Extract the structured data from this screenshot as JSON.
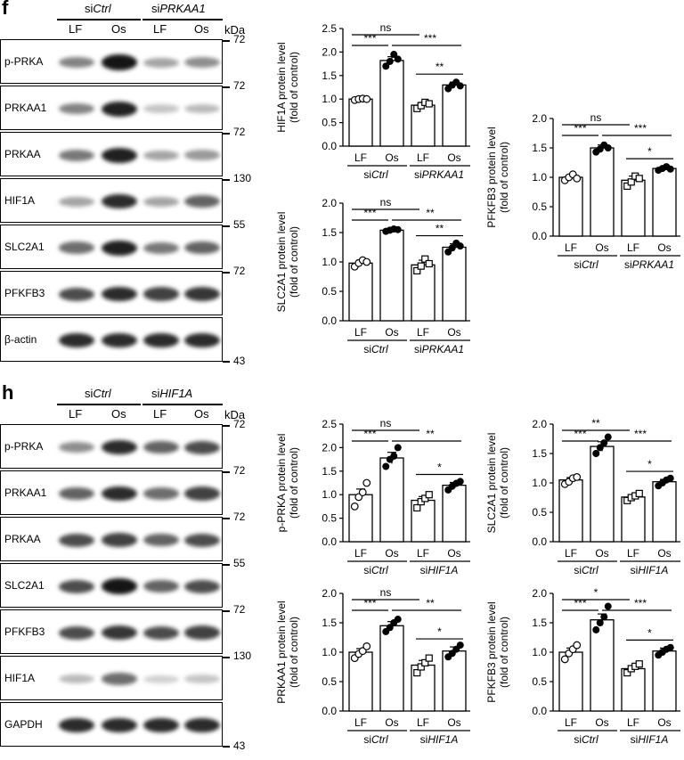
{
  "panels": {
    "f": {
      "letter": "f",
      "header": {
        "group1": "siCtrl",
        "group2": "siPRKAA1",
        "lanes": [
          "LF",
          "Os",
          "LF",
          "Os"
        ],
        "kda": "kDa"
      },
      "blots": [
        {
          "label": "p-PRKA",
          "marker": "72",
          "intensity": [
            0.45,
            0.95,
            0.3,
            0.4
          ]
        },
        {
          "label": "PRKAA1",
          "marker": "72",
          "intensity": [
            0.45,
            0.9,
            0.15,
            0.2
          ]
        },
        {
          "label": "PRKAA",
          "marker": "72",
          "intensity": [
            0.5,
            0.9,
            0.3,
            0.35
          ]
        },
        {
          "label": "HIF1A",
          "marker": "130",
          "intensity": [
            0.3,
            0.85,
            0.3,
            0.6
          ]
        },
        {
          "label": "SLC2A1",
          "marker": "55",
          "intensity": [
            0.55,
            0.9,
            0.5,
            0.6
          ]
        },
        {
          "label": "PFKFB3",
          "marker": "72",
          "intensity": [
            0.7,
            0.85,
            0.75,
            0.8
          ]
        },
        {
          "label": "β-actin",
          "marker": "",
          "intensity": [
            0.85,
            0.85,
            0.85,
            0.85
          ]
        }
      ],
      "bottom_marker": "43"
    },
    "h": {
      "letter": "h",
      "header": {
        "group1": "siCtrl",
        "group2": "siHIF1A",
        "lanes": [
          "LF",
          "Os",
          "LF",
          "Os"
        ],
        "kda": "kDa"
      },
      "blots": [
        {
          "label": "p-PRKA",
          "marker": "72",
          "intensity": [
            0.4,
            0.85,
            0.6,
            0.7
          ]
        },
        {
          "label": "PRKAA1",
          "marker": "72",
          "intensity": [
            0.6,
            0.85,
            0.55,
            0.75
          ]
        },
        {
          "label": "PRKAA",
          "marker": "72",
          "intensity": [
            0.7,
            0.75,
            0.6,
            0.7
          ]
        },
        {
          "label": "SLC2A1",
          "marker": "55",
          "intensity": [
            0.7,
            0.95,
            0.6,
            0.7
          ]
        },
        {
          "label": "PFKFB3",
          "marker": "72",
          "intensity": [
            0.7,
            0.8,
            0.7,
            0.75
          ]
        },
        {
          "label": "HIF1A",
          "marker": "130",
          "intensity": [
            0.2,
            0.55,
            0.1,
            0.15
          ]
        },
        {
          "label": "GAPDH",
          "marker": "",
          "intensity": [
            0.85,
            0.85,
            0.85,
            0.85
          ]
        }
      ],
      "bottom_marker": "43"
    }
  },
  "chart_data": [
    {
      "id": "f-hif1a",
      "type": "bar",
      "categories": [
        "LF",
        "Os",
        "LF",
        "Os"
      ],
      "groups": [
        "siCtrl",
        "siPRKAA1"
      ],
      "values": [
        1.0,
        1.82,
        0.87,
        1.3
      ],
      "errors": [
        0.02,
        0.08,
        0.06,
        0.06
      ],
      "points": [
        [
          0.98,
          1.0,
          1.01,
          1.0
        ],
        [
          1.7,
          1.8,
          1.95,
          1.85
        ],
        [
          0.8,
          0.86,
          0.93,
          0.9
        ],
        [
          1.22,
          1.3,
          1.36,
          1.28
        ]
      ],
      "ylabel": "HIF1A protein level\n(fold of control)",
      "ylim": [
        0,
        2.5
      ],
      "ticks": [
        "0.0",
        "0.5",
        "1.0",
        "1.5",
        "2.0",
        "2.5"
      ],
      "sig": [
        {
          "label": "ns",
          "from": 0,
          "to": 2
        },
        {
          "label": "***",
          "from": 0,
          "to": 1
        },
        {
          "label": "***",
          "from": 1,
          "to": 3
        },
        {
          "label": "**",
          "from": 2,
          "to": 3
        }
      ]
    },
    {
      "id": "f-slc2a1",
      "type": "bar",
      "categories": [
        "LF",
        "Os",
        "LF",
        "Os"
      ],
      "groups": [
        "siCtrl",
        "siPRKAA1"
      ],
      "values": [
        0.98,
        1.54,
        0.95,
        1.25
      ],
      "errors": [
        0.05,
        0.02,
        0.08,
        0.06
      ],
      "points": [
        [
          0.92,
          0.98,
          1.03,
          1.0
        ],
        [
          1.52,
          1.54,
          1.56,
          1.55
        ],
        [
          0.85,
          0.93,
          1.05,
          0.97
        ],
        [
          1.17,
          1.24,
          1.32,
          1.27
        ]
      ],
      "ylabel": "SLC2A1 protein level\n(fold of control)",
      "ylim": [
        0,
        2.0
      ],
      "ticks": [
        "0.0",
        "0.5",
        "1.0",
        "1.5",
        "2.0"
      ],
      "sig": [
        {
          "label": "ns",
          "from": 0,
          "to": 2
        },
        {
          "label": "***",
          "from": 0,
          "to": 1
        },
        {
          "label": "**",
          "from": 1,
          "to": 3
        },
        {
          "label": "**",
          "from": 2,
          "to": 3
        }
      ]
    },
    {
      "id": "f-pfkfb3",
      "type": "bar",
      "categories": [
        "LF",
        "Os",
        "LF",
        "Os"
      ],
      "groups": [
        "siCtrl",
        "siPRKAA1"
      ],
      "values": [
        1.0,
        1.5,
        0.95,
        1.15
      ],
      "errors": [
        0.04,
        0.05,
        0.07,
        0.03
      ],
      "points": [
        [
          0.95,
          1.0,
          1.05,
          0.98
        ],
        [
          1.43,
          1.48,
          1.55,
          1.5
        ],
        [
          0.85,
          0.92,
          1.02,
          0.98
        ],
        [
          1.12,
          1.15,
          1.18,
          1.14
        ]
      ],
      "ylabel": "PFKFB3 protein level\n(fold of control)",
      "ylim": [
        0,
        2.0
      ],
      "ticks": [
        "0.0",
        "0.5",
        "1.0",
        "1.5",
        "2.0"
      ],
      "sig": [
        {
          "label": "ns",
          "from": 0,
          "to": 2
        },
        {
          "label": "***",
          "from": 0,
          "to": 1
        },
        {
          "label": "***",
          "from": 1,
          "to": 3
        },
        {
          "label": "*",
          "from": 2,
          "to": 3
        }
      ]
    },
    {
      "id": "h-pprka",
      "type": "bar",
      "categories": [
        "LF",
        "Os",
        "LF",
        "Os"
      ],
      "groups": [
        "siCtrl",
        "siHIF1A"
      ],
      "values": [
        1.0,
        1.78,
        0.88,
        1.2
      ],
      "errors": [
        0.12,
        0.12,
        0.08,
        0.06
      ],
      "points": [
        [
          0.75,
          0.95,
          1.05,
          1.25
        ],
        [
          1.6,
          1.75,
          1.82,
          2.0
        ],
        [
          0.72,
          0.85,
          0.92,
          1.0
        ],
        [
          1.1,
          1.18,
          1.24,
          1.28
        ]
      ],
      "ylabel": "p-PRKA protein level\n(fold of control)",
      "ylim": [
        0,
        2.5
      ],
      "ticks": [
        "0.0",
        "0.5",
        "1.0",
        "1.5",
        "2.0",
        "2.5"
      ],
      "sig": [
        {
          "label": "ns",
          "from": 0,
          "to": 2
        },
        {
          "label": "***",
          "from": 0,
          "to": 1
        },
        {
          "label": "**",
          "from": 1,
          "to": 3
        },
        {
          "label": "*",
          "from": 2,
          "to": 3
        }
      ]
    },
    {
      "id": "h-prkaa1",
      "type": "bar",
      "categories": [
        "LF",
        "Os",
        "LF",
        "Os"
      ],
      "groups": [
        "siCtrl",
        "siHIF1A"
      ],
      "values": [
        1.0,
        1.45,
        0.78,
        1.02
      ],
      "errors": [
        0.06,
        0.07,
        0.08,
        0.07
      ],
      "points": [
        [
          0.9,
          0.97,
          1.02,
          1.1
        ],
        [
          1.35,
          1.42,
          1.5,
          1.56
        ],
        [
          0.65,
          0.75,
          0.82,
          0.9
        ],
        [
          0.92,
          0.98,
          1.05,
          1.12
        ]
      ],
      "ylabel": "PRKAA1 protein level\n(fold of control)",
      "ylim": [
        0,
        2.0
      ],
      "ticks": [
        "0.0",
        "0.5",
        "1.0",
        "1.5",
        "2.0"
      ],
      "sig": [
        {
          "label": "ns",
          "from": 0,
          "to": 2
        },
        {
          "label": "***",
          "from": 0,
          "to": 1
        },
        {
          "label": "**",
          "from": 1,
          "to": 3
        },
        {
          "label": "*",
          "from": 2,
          "to": 3
        }
      ]
    },
    {
      "id": "h-slc2a1",
      "type": "bar",
      "categories": [
        "LF",
        "Os",
        "LF",
        "Os"
      ],
      "groups": [
        "siCtrl",
        "siHIF1A"
      ],
      "values": [
        1.05,
        1.62,
        0.76,
        1.02
      ],
      "errors": [
        0.04,
        0.08,
        0.04,
        0.04
      ],
      "points": [
        [
          0.98,
          1.02,
          1.08,
          1.1
        ],
        [
          1.5,
          1.6,
          1.68,
          1.78
        ],
        [
          0.7,
          0.75,
          0.78,
          0.82
        ],
        [
          0.95,
          1.0,
          1.05,
          1.08
        ]
      ],
      "ylabel": "SLC2A1 protein level\n(fold of control)",
      "ylim": [
        0,
        2.0
      ],
      "ticks": [
        "0.0",
        "0.5",
        "1.0",
        "1.5",
        "2.0"
      ],
      "sig": [
        {
          "label": "**",
          "from": 0,
          "to": 2
        },
        {
          "label": "***",
          "from": 0,
          "to": 1
        },
        {
          "label": "***",
          "from": 1,
          "to": 3
        },
        {
          "label": "*",
          "from": 2,
          "to": 3
        }
      ]
    },
    {
      "id": "h-pfkfb3",
      "type": "bar",
      "categories": [
        "LF",
        "Os",
        "LF",
        "Os"
      ],
      "groups": [
        "siCtrl",
        "siHIF1A"
      ],
      "values": [
        1.0,
        1.55,
        0.72,
        1.02
      ],
      "errors": [
        0.07,
        0.1,
        0.05,
        0.05
      ],
      "points": [
        [
          0.88,
          0.98,
          1.05,
          1.12
        ],
        [
          1.38,
          1.5,
          1.6,
          1.78
        ],
        [
          0.65,
          0.72,
          0.76,
          0.8
        ],
        [
          0.95,
          1.0,
          1.05,
          1.08
        ]
      ],
      "ylabel": "PFKFB3 protein level\n(fold of control)",
      "ylim": [
        0,
        2.0
      ],
      "ticks": [
        "0.0",
        "0.5",
        "1.0",
        "1.5",
        "2.0"
      ],
      "sig": [
        {
          "label": "*",
          "from": 0,
          "to": 2
        },
        {
          "label": "***",
          "from": 0,
          "to": 1
        },
        {
          "label": "***",
          "from": 1,
          "to": 3
        },
        {
          "label": "*",
          "from": 2,
          "to": 3
        }
      ]
    }
  ]
}
